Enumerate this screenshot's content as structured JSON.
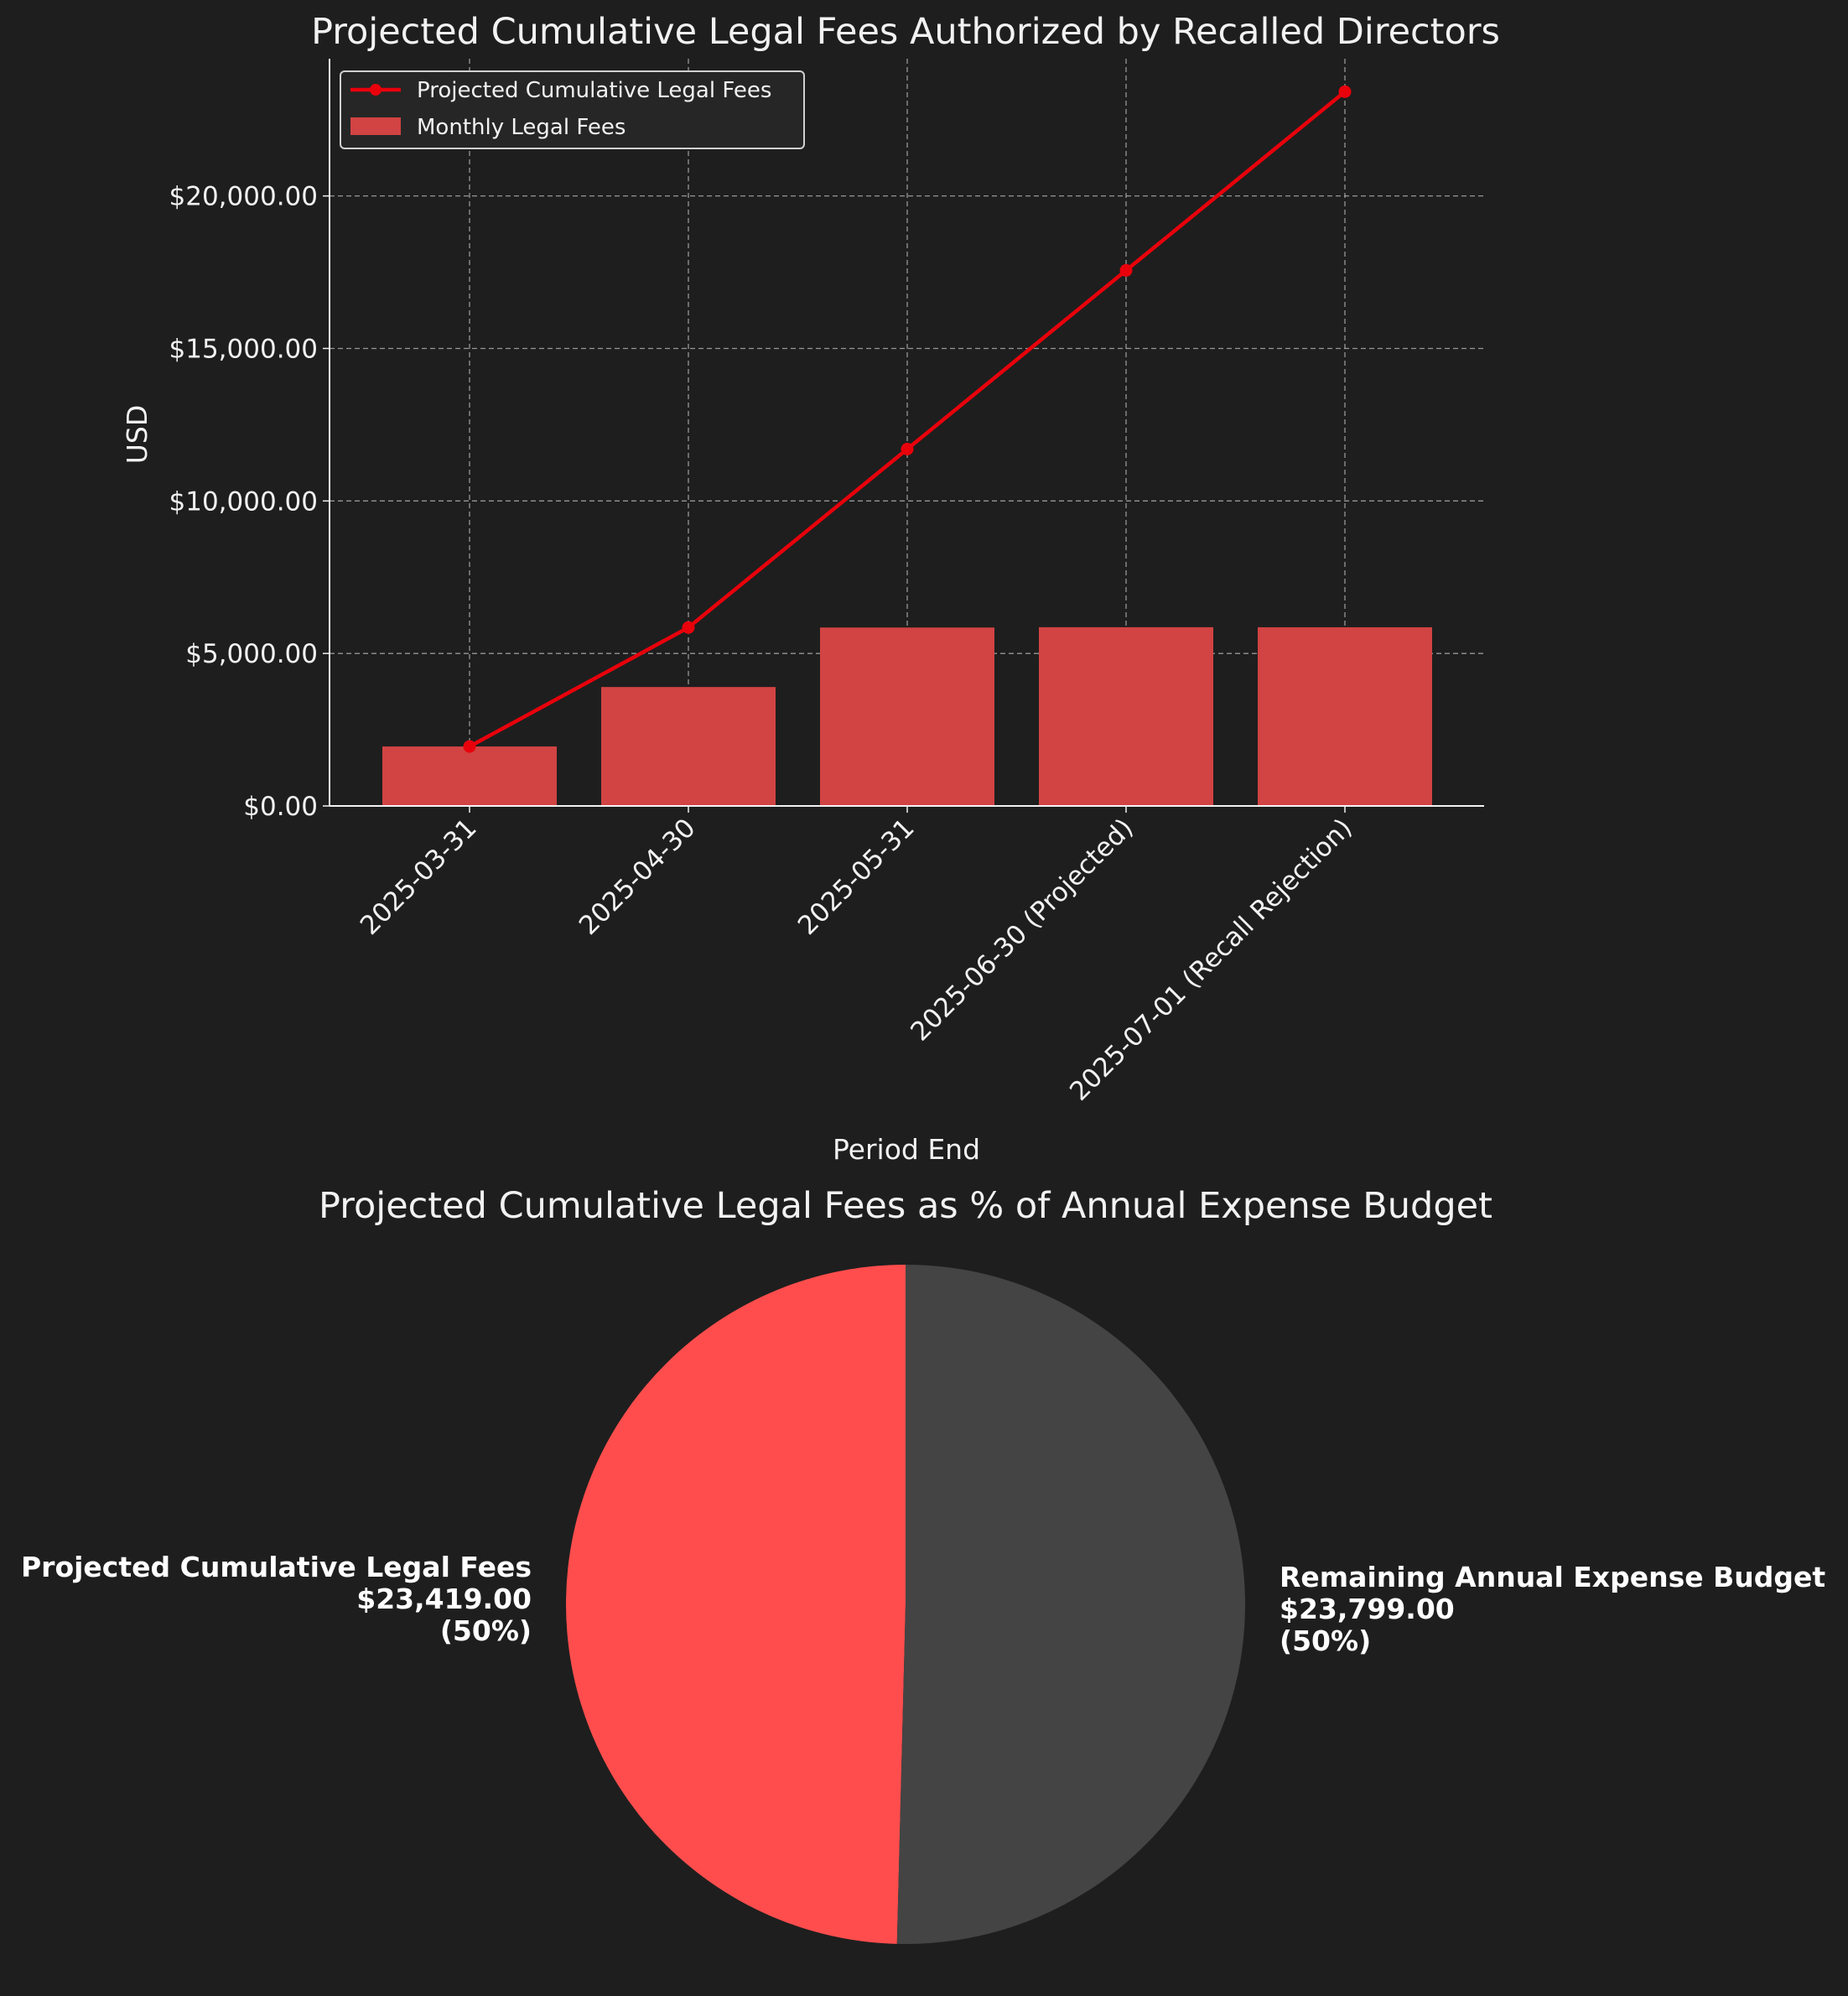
{
  "chart_data": [
    {
      "type": "bar+line",
      "title": "Projected Cumulative Legal Fees Authorized by Recalled Directors",
      "xlabel": "Period End",
      "ylabel": "USD",
      "categories": [
        "2025-03-31",
        "2025-04-30",
        "2025-05-31",
        "2025-06-30 (Projected)",
        "2025-07-01 (Recall Rejection)"
      ],
      "ylim": [
        0,
        24500
      ],
      "yticks": [
        0,
        5000,
        10000,
        15000,
        20000
      ],
      "ytick_labels": [
        "$0.00",
        "$5,000.00",
        "$10,000.00",
        "$15,000.00",
        "$20,000.00"
      ],
      "grid": true,
      "legend_position": "top-left",
      "series": [
        {
          "name": "Projected Cumulative Legal Fees",
          "type": "line",
          "color": "#e8000b",
          "values": [
            1950,
            5850,
            11700,
            17560,
            23419
          ]
        },
        {
          "name": "Monthly Legal Fees",
          "type": "bar",
          "color": "#d24343",
          "values": [
            1950,
            3900,
            5850,
            5860,
            5859
          ]
        }
      ]
    },
    {
      "type": "pie",
      "title": "Projected Cumulative Legal Fees as % of Annual Expense Budget",
      "slices": [
        {
          "label": "Projected Cumulative Legal Fees",
          "value": 23419,
          "value_text": "$23,419.00",
          "percent_text": "(50%)",
          "color": "#ff4d4d"
        },
        {
          "label": "Remaining Annual Expense Budget",
          "value": 23799,
          "value_text": "$23,799.00",
          "percent_text": "(50%)",
          "color": "#444444"
        }
      ]
    }
  ]
}
